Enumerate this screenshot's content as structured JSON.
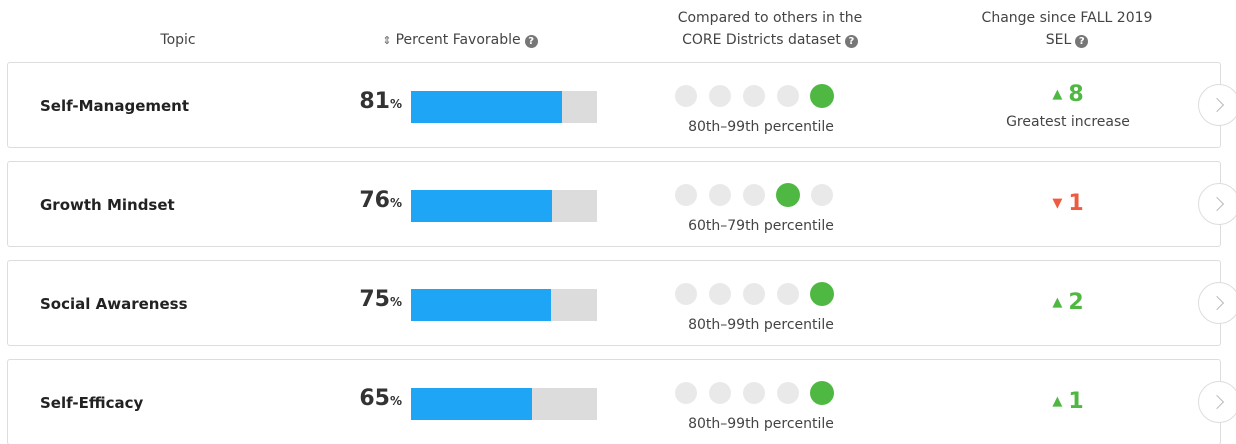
{
  "header": {
    "topic": "Topic",
    "percent": "Percent Favorable",
    "compare": [
      "Compared to others in the",
      "CORE Districts dataset"
    ],
    "change": [
      "Change since FALL 2019",
      "SEL"
    ]
  },
  "table": {
    "unit": "%",
    "rows": [
      {
        "topic": "Self-Management",
        "percent": 81,
        "quintile": 5,
        "percentile": "80th–99th percentile",
        "change": 8,
        "direction": "up",
        "note": "Greatest increase"
      },
      {
        "topic": "Growth Mindset",
        "percent": 76,
        "quintile": 4,
        "percentile": "60th–79th percentile",
        "change": 1,
        "direction": "down"
      },
      {
        "topic": "Social Awareness",
        "percent": 75,
        "quintile": 5,
        "percentile": "80th–99th percentile",
        "change": 2,
        "direction": "up"
      },
      {
        "topic": "Self-Efficacy",
        "percent": 65,
        "quintile": 5,
        "percentile": "80th–99th percentile",
        "change": 1,
        "direction": "up"
      }
    ]
  }
}
